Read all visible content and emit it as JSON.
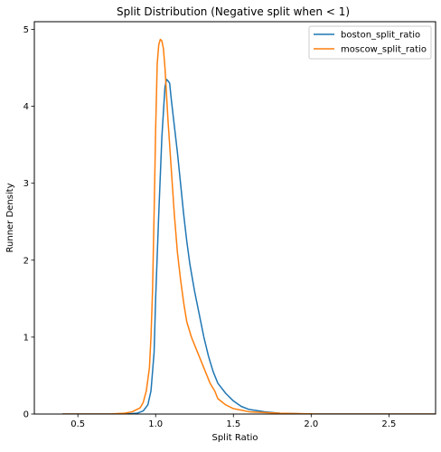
{
  "chart_data": {
    "type": "line",
    "title": "Split Distribution (Negative split when < 1)",
    "xlabel": "Split Ratio",
    "ylabel": "Runner Density",
    "xlim": [
      0.22,
      2.8
    ],
    "ylim": [
      0,
      5.1
    ],
    "xticks": [
      0.5,
      1.0,
      1.5,
      2.0,
      2.5
    ],
    "xtick_labels": [
      "0.5",
      "1.0",
      "1.5",
      "2.0",
      "2.5"
    ],
    "yticks": [
      0,
      1,
      2,
      3,
      4,
      5
    ],
    "ytick_labels": [
      "0",
      "1",
      "2",
      "3",
      "4",
      "5"
    ],
    "grid": false,
    "legend_position": "top-right",
    "series": [
      {
        "name": "boston_split_ratio",
        "color": "#1f77b4",
        "x": [
          0.4,
          0.6,
          0.8,
          0.88,
          0.92,
          0.95,
          0.97,
          0.99,
          1.0,
          1.02,
          1.04,
          1.06,
          1.07,
          1.08,
          1.09,
          1.1,
          1.12,
          1.14,
          1.16,
          1.18,
          1.2,
          1.22,
          1.25,
          1.28,
          1.31,
          1.34,
          1.37,
          1.4,
          1.45,
          1.5,
          1.55,
          1.6,
          1.7,
          1.8,
          2.0,
          2.3,
          2.8
        ],
        "y": [
          0.0,
          0.0,
          0.0,
          0.01,
          0.04,
          0.12,
          0.3,
          0.8,
          1.5,
          2.6,
          3.6,
          4.25,
          4.35,
          4.33,
          4.3,
          4.1,
          3.75,
          3.4,
          3.0,
          2.6,
          2.25,
          1.95,
          1.6,
          1.3,
          1.0,
          0.75,
          0.55,
          0.4,
          0.27,
          0.17,
          0.1,
          0.06,
          0.03,
          0.01,
          0.0,
          0.0,
          0.0
        ]
      },
      {
        "name": "moscow_split_ratio",
        "color": "#ff7f0e",
        "x": [
          0.4,
          0.6,
          0.7,
          0.8,
          0.85,
          0.9,
          0.92,
          0.94,
          0.96,
          0.97,
          0.98,
          0.99,
          1.0,
          1.01,
          1.02,
          1.03,
          1.04,
          1.05,
          1.06,
          1.07,
          1.08,
          1.1,
          1.12,
          1.14,
          1.16,
          1.18,
          1.2,
          1.23,
          1.26,
          1.29,
          1.32,
          1.35,
          1.38,
          1.4,
          1.45,
          1.5,
          1.6,
          1.8,
          2.05,
          2.8
        ],
        "y": [
          0.0,
          0.0,
          0.0,
          0.01,
          0.03,
          0.08,
          0.15,
          0.3,
          0.6,
          1.0,
          1.6,
          2.6,
          3.7,
          4.55,
          4.8,
          4.87,
          4.85,
          4.75,
          4.5,
          4.15,
          3.8,
          3.2,
          2.6,
          2.1,
          1.75,
          1.45,
          1.2,
          1.0,
          0.85,
          0.7,
          0.55,
          0.4,
          0.3,
          0.2,
          0.12,
          0.07,
          0.03,
          0.01,
          0.0,
          0.0
        ]
      }
    ]
  }
}
